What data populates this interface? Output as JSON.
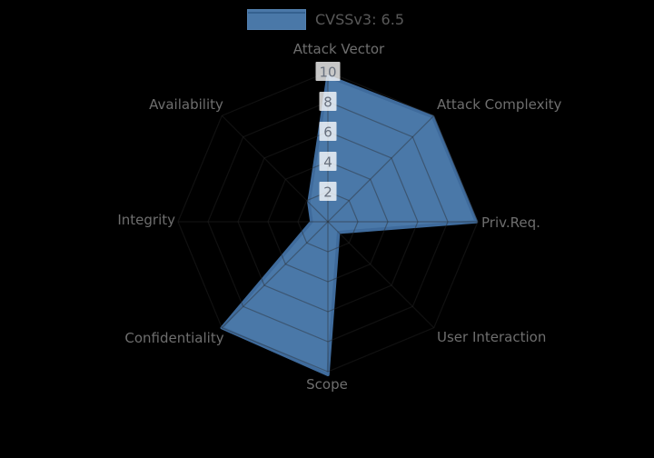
{
  "legend": {
    "label": "CVSSv3: 6.5",
    "swatch_fill": "#4a78a8",
    "swatch_line_color": "#35618f"
  },
  "chart_data": {
    "type": "radar",
    "categories": [
      "Attack Vector",
      "Attack Complexity",
      "Priv.Req.",
      "User Interaction",
      "Scope",
      "Confidentiality",
      "Integrity",
      "Availability"
    ],
    "series": [
      {
        "name": "CVSSv3: 6.5",
        "values": [
          9.7,
          9.9,
          9.9,
          1.0,
          10.2,
          10.0,
          1.1,
          1.8
        ]
      }
    ],
    "radial_ticks": [
      2,
      4,
      6,
      8,
      10
    ],
    "radial_range": [
      0,
      10
    ],
    "start_angle_deg": 90,
    "direction": "clockwise",
    "grid": true,
    "legend_position": "top-center",
    "colors": {
      "background": "#000000",
      "fill": "#4a78a8",
      "line": "#3f6b9c",
      "grid": "rgba(40,40,40,0.42)",
      "axis_label": "#6e6e6e",
      "tick_label": "#68707e",
      "tick_box": "rgba(255,255,255,0.78)"
    }
  }
}
